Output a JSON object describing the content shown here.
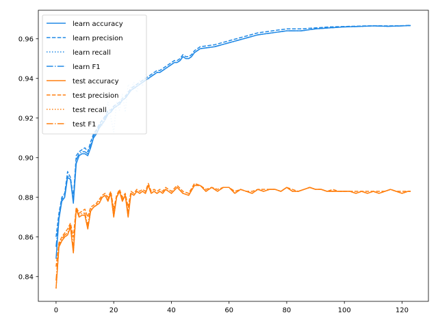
{
  "chart_data": {
    "type": "line",
    "title": "",
    "xlabel": "",
    "ylabel": "",
    "xlim": [
      -6.15,
      129.15
    ],
    "ylim": [
      0.8275,
      0.9744
    ],
    "xticks": [
      0,
      20,
      40,
      60,
      80,
      100,
      120
    ],
    "yticks": [
      0.84,
      0.86,
      0.88,
      0.9,
      0.92,
      0.94,
      0.96
    ],
    "ytick_labels": [
      "0.84",
      "0.86",
      "0.88",
      "0.90",
      "0.92",
      "0.94",
      "0.96"
    ],
    "grid": false,
    "legend_position": "top-left",
    "colors": {
      "learn": "#1f88e5",
      "test": "#ff7f0e",
      "learn_recall": "#1f88e5",
      "learn_F1": "#1f88e5"
    },
    "series": [
      {
        "name": "learn accuracy",
        "group": "learn",
        "dash": "solid",
        "x": [
          0,
          1,
          2,
          3,
          4,
          5,
          6,
          7,
          8,
          9,
          10,
          11,
          12,
          13,
          14,
          15,
          16,
          17,
          18,
          19,
          20,
          21,
          22,
          23,
          24,
          25,
          26,
          27,
          28,
          29,
          30,
          31,
          32,
          33,
          34,
          35,
          36,
          37,
          38,
          39,
          40,
          41,
          42,
          43,
          44,
          45,
          46,
          47,
          48,
          49,
          50,
          55,
          60,
          65,
          70,
          75,
          80,
          85,
          90,
          95,
          100,
          105,
          110,
          115,
          120,
          123
        ],
        "values": [
          0.849,
          0.869,
          0.878,
          0.88,
          0.89,
          0.889,
          0.877,
          0.897,
          0.901,
          0.902,
          0.902,
          0.901,
          0.905,
          0.91,
          0.912,
          0.915,
          0.917,
          0.919,
          0.922,
          0.923,
          0.925,
          0.926,
          0.927,
          0.929,
          0.93,
          0.932,
          0.934,
          0.935,
          0.936,
          0.937,
          0.938,
          0.939,
          0.94,
          0.941,
          0.942,
          0.943,
          0.943,
          0.944,
          0.945,
          0.946,
          0.947,
          0.948,
          0.948,
          0.949,
          0.951,
          0.95,
          0.95,
          0.951,
          0.953,
          0.954,
          0.955,
          0.956,
          0.958,
          0.96,
          0.962,
          0.963,
          0.964,
          0.964,
          0.965,
          0.9655,
          0.966,
          0.9662,
          0.9665,
          0.9663,
          0.9665,
          0.9667
        ]
      },
      {
        "name": "learn precision",
        "group": "learn",
        "dash": "dashed",
        "x": [
          0,
          1,
          2,
          3,
          4,
          5,
          6,
          7,
          8,
          9,
          10,
          11,
          12,
          13,
          14,
          15,
          16,
          17,
          18,
          19,
          20,
          21,
          22,
          23,
          24,
          25,
          26,
          27,
          28,
          29,
          30,
          31,
          32,
          33,
          34,
          35,
          36,
          37,
          38,
          39,
          40,
          41,
          42,
          43,
          44,
          45,
          46,
          47,
          48,
          49,
          50,
          55,
          60,
          65,
          70,
          75,
          80,
          85,
          90,
          95,
          100,
          105,
          110,
          115,
          120,
          123
        ],
        "values": [
          0.86,
          0.872,
          0.88,
          0.882,
          0.893,
          0.89,
          0.88,
          0.901,
          0.903,
          0.904,
          0.905,
          0.903,
          0.908,
          0.912,
          0.914,
          0.917,
          0.919,
          0.921,
          0.924,
          0.924,
          0.926,
          0.927,
          0.928,
          0.93,
          0.931,
          0.933,
          0.935,
          0.936,
          0.937,
          0.938,
          0.939,
          0.94,
          0.941,
          0.942,
          0.943,
          0.944,
          0.944,
          0.945,
          0.946,
          0.947,
          0.948,
          0.949,
          0.949,
          0.95,
          0.952,
          0.951,
          0.951,
          0.952,
          0.954,
          0.955,
          0.956,
          0.957,
          0.959,
          0.961,
          0.963,
          0.964,
          0.965,
          0.965,
          0.9655,
          0.966,
          0.9662,
          0.9664,
          0.9666,
          0.9665,
          0.9666,
          0.9668
        ]
      },
      {
        "name": "learn recall",
        "group": "learn",
        "dash": "dotted",
        "x": [
          16,
          17,
          18,
          19,
          20,
          21,
          22,
          23,
          24,
          25,
          26,
          27,
          28,
          29,
          30,
          31,
          32,
          33
        ],
        "values": [
          0.916,
          0.919,
          0.928,
          0.92,
          0.913,
          0.928,
          0.924,
          0.932,
          0.923,
          0.937,
          0.935,
          0.938,
          0.933,
          0.939,
          0.936,
          0.942,
          0.939,
          0.942
        ]
      },
      {
        "name": "learn F1",
        "group": "learn",
        "dash": "dashdot",
        "x": [
          0,
          1,
          2,
          3,
          4,
          5,
          6,
          7,
          8,
          9,
          10,
          11,
          12,
          13,
          14,
          15,
          16,
          17,
          18,
          19,
          20,
          21,
          22,
          23,
          24,
          25,
          26,
          27,
          28,
          29,
          30,
          31,
          32,
          33,
          34,
          35,
          36,
          37,
          38,
          39,
          40,
          41,
          42,
          43,
          44,
          45,
          46,
          47,
          48,
          49,
          50,
          55,
          60,
          65,
          70,
          75,
          80,
          85,
          90,
          95,
          100,
          105,
          110,
          115,
          120,
          123
        ],
        "values": [
          0.855,
          0.87,
          0.879,
          0.881,
          0.891,
          0.889,
          0.878,
          0.899,
          0.902,
          0.903,
          0.903,
          0.902,
          0.906,
          0.911,
          0.913,
          0.916,
          0.918,
          0.92,
          0.923,
          0.923,
          0.925,
          0.926,
          0.927,
          0.929,
          0.93,
          0.932,
          0.934,
          0.935,
          0.936,
          0.937,
          0.938,
          0.939,
          0.94,
          0.941,
          0.942,
          0.943,
          0.943,
          0.944,
          0.945,
          0.946,
          0.947,
          0.948,
          0.948,
          0.949,
          0.951,
          0.95,
          0.95,
          0.951,
          0.953,
          0.954,
          0.955,
          0.956,
          0.958,
          0.96,
          0.962,
          0.963,
          0.964,
          0.964,
          0.965,
          0.9655,
          0.966,
          0.9662,
          0.9665,
          0.9663,
          0.9665,
          0.9667
        ]
      },
      {
        "name": "test accuracy",
        "group": "test",
        "dash": "solid",
        "x": [
          0,
          1,
          2,
          3,
          4,
          5,
          6,
          7,
          8,
          9,
          10,
          11,
          12,
          13,
          14,
          15,
          16,
          17,
          18,
          19,
          20,
          21,
          22,
          23,
          24,
          25,
          26,
          27,
          28,
          29,
          30,
          31,
          32,
          33,
          34,
          35,
          36,
          37,
          38,
          39,
          40,
          42,
          44,
          46,
          48,
          50,
          52,
          54,
          56,
          58,
          60,
          62,
          64,
          66,
          68,
          70,
          72,
          74,
          76,
          78,
          80,
          82,
          84,
          86,
          88,
          90,
          92,
          94,
          96,
          98,
          100,
          102,
          104,
          106,
          108,
          110,
          112,
          114,
          116,
          118,
          120,
          122,
          123
        ],
        "values": [
          0.834,
          0.855,
          0.858,
          0.86,
          0.861,
          0.865,
          0.852,
          0.874,
          0.87,
          0.871,
          0.871,
          0.864,
          0.873,
          0.875,
          0.876,
          0.877,
          0.88,
          0.881,
          0.878,
          0.882,
          0.87,
          0.88,
          0.883,
          0.878,
          0.881,
          0.87,
          0.882,
          0.881,
          0.883,
          0.882,
          0.883,
          0.882,
          0.886,
          0.882,
          0.883,
          0.882,
          0.883,
          0.882,
          0.884,
          0.883,
          0.882,
          0.885,
          0.882,
          0.881,
          0.886,
          0.886,
          0.883,
          0.885,
          0.883,
          0.885,
          0.885,
          0.882,
          0.884,
          0.883,
          0.882,
          0.884,
          0.883,
          0.884,
          0.884,
          0.883,
          0.885,
          0.883,
          0.883,
          0.884,
          0.885,
          0.884,
          0.884,
          0.883,
          0.883,
          0.883,
          0.883,
          0.883,
          0.882,
          0.883,
          0.882,
          0.883,
          0.882,
          0.883,
          0.884,
          0.883,
          0.882,
          0.883,
          0.883
        ]
      },
      {
        "name": "test precision",
        "group": "test",
        "dash": "dashed",
        "x": [
          0,
          1,
          2,
          3,
          4,
          5,
          6,
          7,
          8,
          9,
          10,
          11,
          12,
          13,
          14,
          15,
          16,
          17,
          18,
          19,
          20,
          21,
          22,
          23,
          24,
          25,
          26,
          27,
          28,
          29,
          30,
          31,
          32,
          33,
          34,
          35,
          36,
          37,
          38,
          39,
          40,
          42,
          44,
          46,
          48,
          50,
          52,
          54,
          56,
          58,
          60,
          62,
          64,
          66,
          68,
          70,
          72,
          74,
          76,
          78,
          80,
          82,
          84,
          86,
          88,
          90,
          92,
          94,
          96,
          98,
          100,
          102,
          104,
          106,
          108,
          110,
          112,
          114,
          116,
          118,
          120,
          122,
          123
        ],
        "values": [
          0.845,
          0.857,
          0.86,
          0.862,
          0.864,
          0.867,
          0.86,
          0.875,
          0.872,
          0.873,
          0.874,
          0.87,
          0.875,
          0.876,
          0.877,
          0.879,
          0.881,
          0.882,
          0.88,
          0.883,
          0.874,
          0.881,
          0.884,
          0.88,
          0.882,
          0.875,
          0.883,
          0.882,
          0.884,
          0.883,
          0.884,
          0.883,
          0.887,
          0.883,
          0.884,
          0.883,
          0.884,
          0.883,
          0.885,
          0.884,
          0.883,
          0.886,
          0.883,
          0.882,
          0.887,
          0.886,
          0.884,
          0.885,
          0.884,
          0.885,
          0.885,
          0.883,
          0.884,
          0.883,
          0.883,
          0.884,
          0.884,
          0.884,
          0.884,
          0.883,
          0.885,
          0.884,
          0.883,
          0.884,
          0.885,
          0.884,
          0.884,
          0.883,
          0.884,
          0.883,
          0.883,
          0.883,
          0.883,
          0.883,
          0.883,
          0.883,
          0.883,
          0.883,
          0.884,
          0.883,
          0.883,
          0.883,
          0.883
        ]
      },
      {
        "name": "test recall",
        "group": "test",
        "dash": "dotted",
        "x": [
          0,
          1,
          2,
          3,
          4,
          5,
          6,
          7,
          8,
          9,
          10,
          11,
          12,
          13,
          14,
          15,
          16,
          17,
          18,
          19,
          20,
          21,
          22,
          23,
          24,
          25,
          26,
          27,
          28,
          29,
          30,
          31,
          32,
          33,
          34,
          35,
          36,
          37,
          38,
          39,
          40,
          42,
          44,
          46,
          48,
          50,
          52,
          54,
          56,
          58,
          60,
          62,
          64,
          66,
          68,
          70,
          72,
          74,
          76,
          78,
          80,
          82,
          84,
          86,
          88,
          90,
          92,
          94,
          96,
          98,
          100,
          102,
          104,
          106,
          108,
          110,
          112,
          114,
          116,
          118,
          120,
          122,
          123
        ],
        "values": [
          0.834,
          0.855,
          0.858,
          0.86,
          0.861,
          0.865,
          0.852,
          0.874,
          0.87,
          0.871,
          0.871,
          0.864,
          0.873,
          0.875,
          0.876,
          0.877,
          0.88,
          0.881,
          0.878,
          0.882,
          0.87,
          0.88,
          0.883,
          0.878,
          0.881,
          0.87,
          0.882,
          0.881,
          0.883,
          0.882,
          0.883,
          0.882,
          0.886,
          0.882,
          0.883,
          0.882,
          0.883,
          0.882,
          0.884,
          0.883,
          0.882,
          0.885,
          0.882,
          0.881,
          0.886,
          0.886,
          0.883,
          0.885,
          0.883,
          0.885,
          0.885,
          0.882,
          0.884,
          0.883,
          0.882,
          0.884,
          0.883,
          0.884,
          0.884,
          0.883,
          0.885,
          0.883,
          0.883,
          0.884,
          0.885,
          0.884,
          0.884,
          0.883,
          0.883,
          0.883,
          0.883,
          0.883,
          0.882,
          0.883,
          0.882,
          0.883,
          0.882,
          0.883,
          0.884,
          0.883,
          0.882,
          0.883,
          0.883
        ]
      },
      {
        "name": "test F1",
        "group": "test",
        "dash": "dashdot",
        "x": [
          0,
          1,
          2,
          3,
          4,
          5,
          6,
          7,
          8,
          9,
          10,
          11,
          12,
          13,
          14,
          15,
          16,
          17,
          18,
          19,
          20,
          21,
          22,
          23,
          24,
          25,
          26,
          27,
          28,
          29,
          30,
          31,
          32,
          33,
          34,
          35,
          36,
          37,
          38,
          39,
          40,
          42,
          44,
          46,
          48,
          50,
          52,
          54,
          56,
          58,
          60,
          62,
          64,
          66,
          68,
          70,
          72,
          74,
          76,
          78,
          80,
          82,
          84,
          86,
          88,
          90,
          92,
          94,
          96,
          98,
          100,
          102,
          104,
          106,
          108,
          110,
          112,
          114,
          116,
          118,
          120,
          122,
          123
        ],
        "values": [
          0.838,
          0.856,
          0.859,
          0.861,
          0.862,
          0.866,
          0.855,
          0.874,
          0.871,
          0.872,
          0.872,
          0.866,
          0.874,
          0.875,
          0.876,
          0.878,
          0.88,
          0.881,
          0.879,
          0.882,
          0.872,
          0.88,
          0.883,
          0.879,
          0.881,
          0.872,
          0.882,
          0.881,
          0.883,
          0.882,
          0.883,
          0.882,
          0.886,
          0.882,
          0.883,
          0.882,
          0.883,
          0.882,
          0.884,
          0.883,
          0.882,
          0.885,
          0.882,
          0.881,
          0.886,
          0.886,
          0.883,
          0.885,
          0.883,
          0.885,
          0.885,
          0.882,
          0.884,
          0.883,
          0.882,
          0.884,
          0.883,
          0.884,
          0.884,
          0.883,
          0.885,
          0.883,
          0.883,
          0.884,
          0.885,
          0.884,
          0.884,
          0.883,
          0.883,
          0.883,
          0.883,
          0.883,
          0.882,
          0.883,
          0.882,
          0.883,
          0.882,
          0.883,
          0.884,
          0.883,
          0.882,
          0.883,
          0.883
        ]
      }
    ]
  }
}
